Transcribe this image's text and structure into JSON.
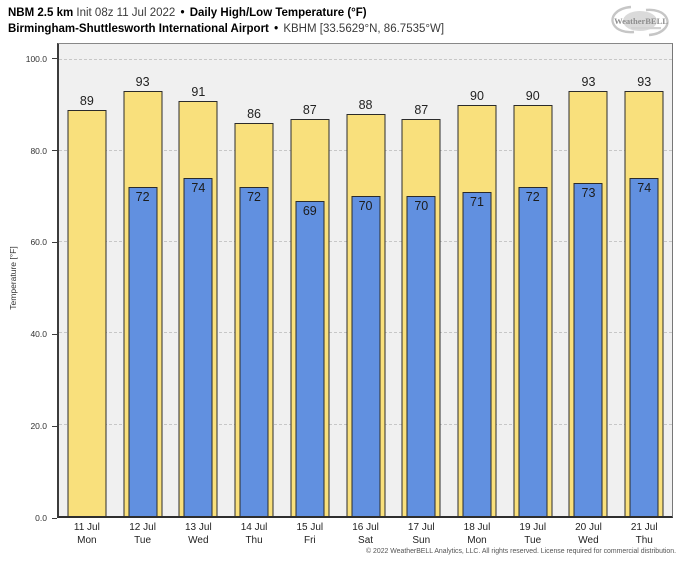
{
  "header": {
    "model": "NBM 2.5 km",
    "init": "Init 08z 11 Jul 2022",
    "sep": "•",
    "product": "Daily High/Low Temperature (°F)",
    "station": "Birmingham-Shuttlesworth International Airport",
    "station_id": "KBHM [33.5629°N, 86.7535°W]"
  },
  "logo": {
    "text": "WeatherBELL"
  },
  "footer": {
    "copyright": "© 2022 WeatherBELL Analytics, LLC. All rights reserved. License required for commercial distribution."
  },
  "chart_data": {
    "type": "bar",
    "title": "NBM 2.5 km Daily High/Low Temperature (°F) — Birmingham-Shuttlesworth International Airport (KBHM)",
    "ylabel": "Temperature [°F]",
    "ylim": [
      0,
      103.4
    ],
    "y_ticks": [
      0,
      20,
      40,
      60,
      80,
      100
    ],
    "y_tick_labels": [
      "0.0",
      "20.0",
      "40.0",
      "60.0",
      "80.0",
      "100.0"
    ],
    "grid": "horizontal-dashed",
    "legend": "none",
    "categories": [
      "11 Jul",
      "12 Jul",
      "13 Jul",
      "14 Jul",
      "15 Jul",
      "16 Jul",
      "17 Jul",
      "18 Jul",
      "19 Jul",
      "20 Jul",
      "21 Jul"
    ],
    "day_labels": [
      "Mon",
      "Tue",
      "Wed",
      "Thu",
      "Fri",
      "Sat",
      "Sun",
      "Mon",
      "Tue",
      "Wed",
      "Thu"
    ],
    "series": [
      {
        "name": "High",
        "color": "#F9E07C",
        "values": [
          89,
          93,
          91,
          86,
          87,
          88,
          87,
          90,
          90,
          93,
          93
        ]
      },
      {
        "name": "Low",
        "color": "#6190E0",
        "values": [
          null,
          72,
          74,
          72,
          69,
          70,
          70,
          71,
          72,
          73,
          74
        ]
      }
    ]
  }
}
